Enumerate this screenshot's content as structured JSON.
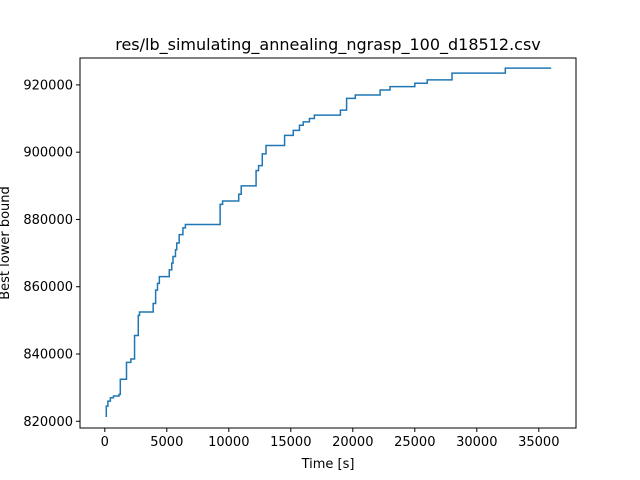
{
  "chart_data": {
    "type": "line",
    "title": "res/lb_simulating_annealing_ngrasp_100_d18512.csv",
    "xlabel": "Time [s]",
    "ylabel": "Best lower bound",
    "xlim": [
      -2000,
      38000
    ],
    "ylim": [
      818000,
      928000
    ],
    "xticks": [
      0,
      5000,
      10000,
      15000,
      20000,
      25000,
      30000,
      35000
    ],
    "xtick_labels": [
      "0",
      "5000",
      "10000",
      "15000",
      "20000",
      "25000",
      "30000",
      "35000"
    ],
    "yticks": [
      820000,
      840000,
      860000,
      880000,
      900000,
      920000
    ],
    "ytick_labels": [
      "820000",
      "840000",
      "860000",
      "880000",
      "900000",
      "920000"
    ],
    "grid": false,
    "line_color": "#1f77b4",
    "series": [
      {
        "step": "post",
        "x": [
          50,
          120,
          250,
          450,
          700,
          1150,
          1250,
          1750,
          2100,
          2400,
          2700,
          2800,
          2900,
          3100,
          3900,
          4100,
          4250,
          4400,
          4650,
          5200,
          5400,
          5500,
          5700,
          5800,
          6000,
          6300,
          6500,
          9300,
          9500,
          10800,
          11000,
          12200,
          12400,
          12700,
          13000,
          13500,
          14000,
          14500,
          15200,
          15700,
          16000,
          16500,
          16900,
          17300,
          19000,
          19500,
          20200,
          22200,
          23000,
          23800,
          25000,
          26000,
          26500,
          28000,
          32300,
          36000
        ],
        "y": [
          821500,
          824500,
          826000,
          827000,
          827500,
          828000,
          832500,
          837500,
          838500,
          845500,
          851500,
          852500,
          852500,
          852500,
          855000,
          859000,
          861000,
          863000,
          863000,
          865000,
          867000,
          869000,
          871000,
          873000,
          875500,
          877500,
          878500,
          884500,
          885500,
          887500,
          890000,
          894500,
          896000,
          899500,
          902000,
          902000,
          902000,
          905000,
          906500,
          908000,
          909000,
          910000,
          911000,
          911000,
          912500,
          916000,
          917000,
          918500,
          919500,
          919500,
          920500,
          921500,
          921500,
          923500,
          925000,
          925000
        ]
      }
    ]
  }
}
